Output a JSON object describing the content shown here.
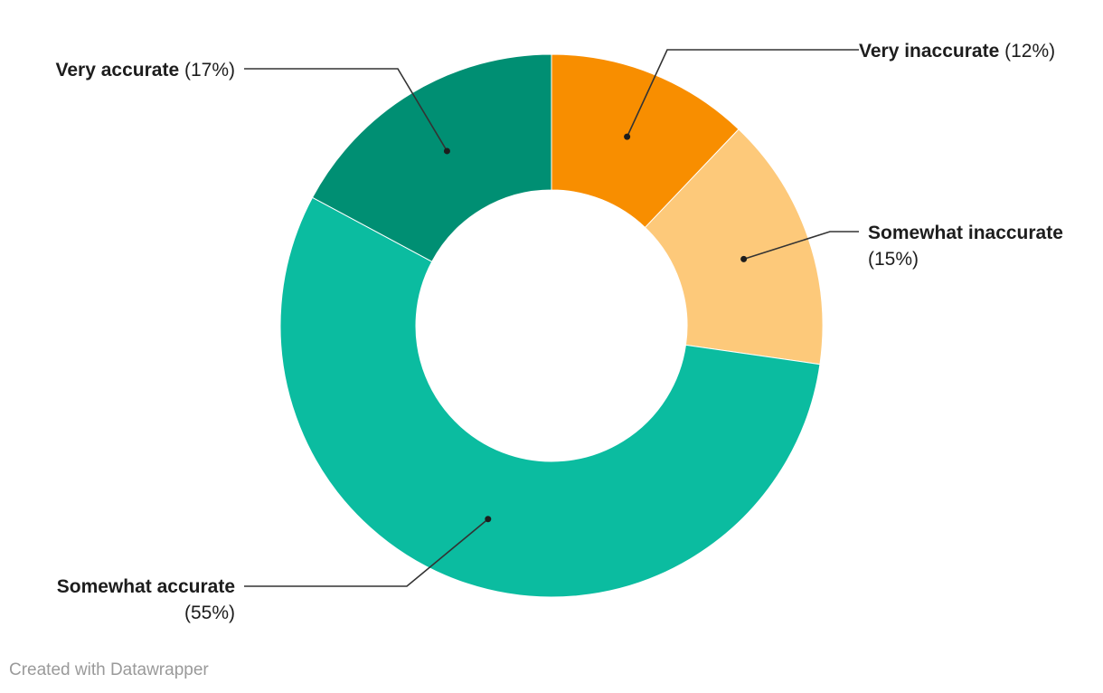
{
  "chart_data": {
    "type": "pie",
    "variant": "donut",
    "slices": [
      {
        "label": "Very inaccurate",
        "pct_text": "(12%)",
        "value": 12,
        "color": "#f88e00",
        "label_side": "right"
      },
      {
        "label": "Somewhat inaccurate",
        "pct_text": "(15%)",
        "value": 15,
        "color": "#fdc97a",
        "label_side": "right"
      },
      {
        "label": "Somewhat accurate",
        "pct_text": "(55%)",
        "value": 55,
        "color": "#0bbca0",
        "label_side": "left"
      },
      {
        "label": "Very accurate",
        "pct_text": "(17%)",
        "value": 17,
        "color": "#008f73",
        "label_side": "left"
      }
    ]
  },
  "footer": {
    "credit": "Created with Datawrapper"
  }
}
